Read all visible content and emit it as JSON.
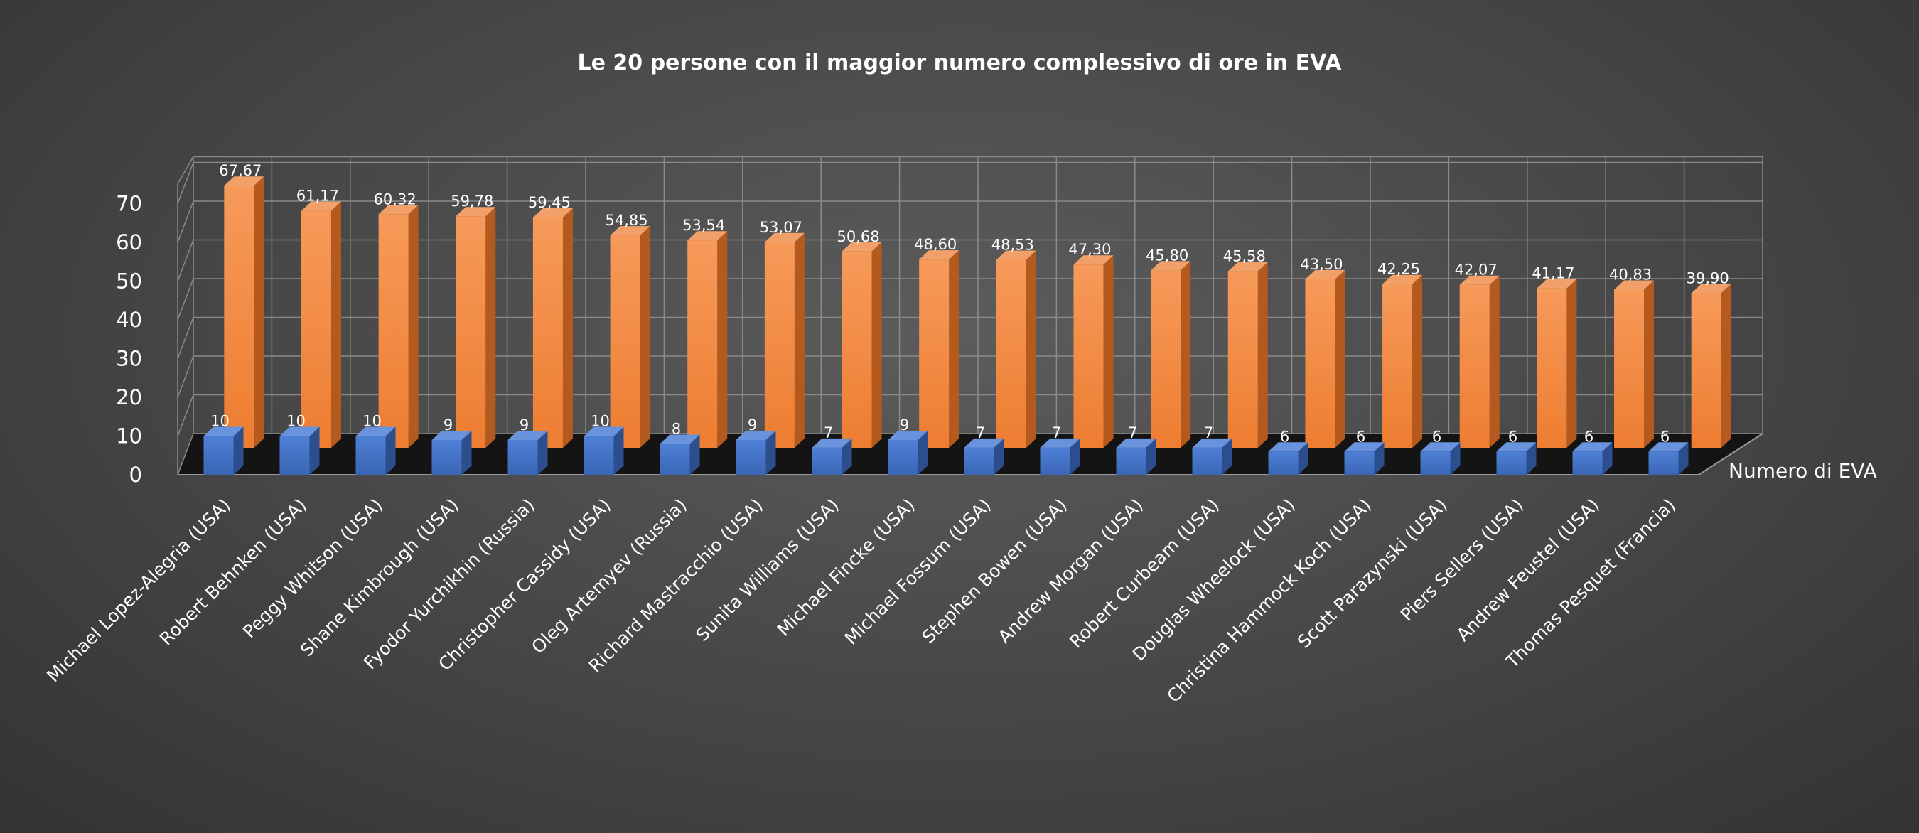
{
  "chart_data": {
    "type": "bar",
    "subtype": "3d-clustered-depth",
    "title": "Le 20 persone con il maggior numero complessivo di ore in EVA",
    "categories": [
      "Michael Lopez-Alegria (USA)",
      "Robert Behnken (USA)",
      "Peggy Whitson (USA)",
      "Shane Kimbrough  (USA)",
      "Fyodor Yurchikhin (Russia)",
      "Christopher Cassidy (USA)",
      "Oleg Artemyev (Russia)",
      "Richard Mastracchio (USA)",
      "Sunita Williams (USA)",
      "Michael Fincke (USA)",
      "Michael Fossum (USA)",
      "Stephen Bowen (USA)",
      "Andrew Morgan (USA)",
      "Robert Curbeam (USA)",
      "Douglas Wheelock  (USA)",
      "Christina Hammock Koch (USA)",
      "Scott Parazynski (USA)",
      "Piers Sellers (USA)",
      "Andrew Feustel (USA)",
      "Thomas Pesquet (Francia)"
    ],
    "series": [
      {
        "name": "Numero di EVA",
        "color": "#4472C4",
        "values": [
          10,
          10,
          10,
          9,
          9,
          10,
          8,
          9,
          7,
          9,
          7,
          7,
          7,
          7,
          6,
          6,
          6,
          6,
          6,
          6
        ],
        "labels": [
          "10",
          "10",
          "10",
          "9",
          "9",
          "10",
          "8",
          "9",
          "7",
          "9",
          "7",
          "7",
          "7",
          "7",
          "6",
          "6",
          "6",
          "6",
          "6",
          "6"
        ]
      },
      {
        "name": "",
        "color": "#ED7D31",
        "values": [
          67.67,
          61.17,
          60.32,
          59.78,
          59.45,
          54.85,
          53.54,
          53.07,
          50.68,
          48.6,
          48.53,
          47.3,
          45.8,
          45.58,
          43.5,
          42.25,
          42.07,
          41.17,
          40.83,
          39.9
        ],
        "labels": [
          "67,67",
          "61,17",
          "60,32",
          "59,78",
          "59,45",
          "54,85",
          "53,54",
          "53,07",
          "50,68",
          "48,60",
          "48,53",
          "47,30",
          "45,80",
          "45,58",
          "43,50",
          "42,25",
          "42,07",
          "41,17",
          "40,83",
          "39,90"
        ]
      }
    ],
    "yticks": [
      "0",
      "10",
      "20",
      "30",
      "40",
      "50",
      "60",
      "70"
    ],
    "ylim": [
      0,
      70
    ],
    "grid": true,
    "xlabel": "",
    "ylabel": ""
  }
}
